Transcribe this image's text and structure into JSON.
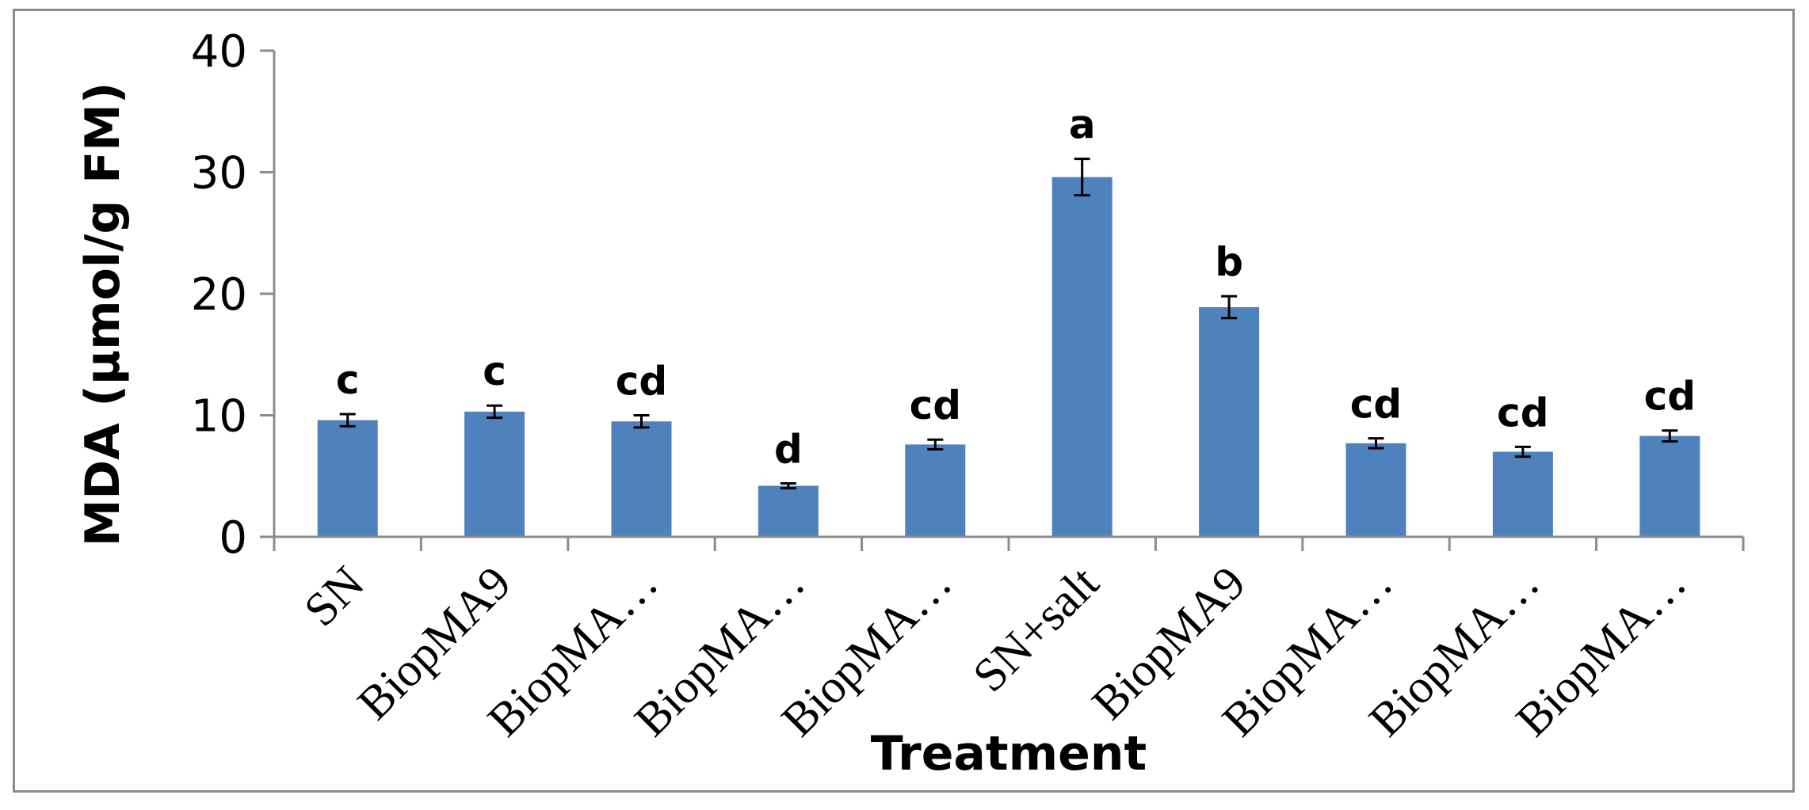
{
  "chart_data": {
    "type": "bar",
    "xlabel": "Treatment",
    "ylabel": "MDA (µmol/g  FM)",
    "ylim": [
      0,
      40
    ],
    "yticks": [
      0,
      10,
      20,
      30,
      40
    ],
    "grid": false,
    "legend": "none",
    "bar_color": "#4f81bd",
    "categories": [
      "SN",
      "BiopMA9",
      "BiopMA…",
      "BiopMA…",
      "BiopMA…",
      "SN+salt",
      "BiopMA9",
      "BiopMA…",
      "BiopMA…",
      "BiopMA…"
    ],
    "series": [
      {
        "values": [
          9.6,
          10.3,
          9.5,
          4.2,
          7.6,
          29.6,
          18.9,
          7.7,
          7.0,
          8.3
        ],
        "errors": [
          0.5,
          0.5,
          0.5,
          0.2,
          0.4,
          1.5,
          0.9,
          0.4,
          0.4,
          0.45
        ]
      }
    ],
    "significance": [
      "c",
      "c",
      "cd",
      "d",
      "cd",
      "a",
      "b",
      "cd",
      "cd",
      "cd"
    ]
  }
}
